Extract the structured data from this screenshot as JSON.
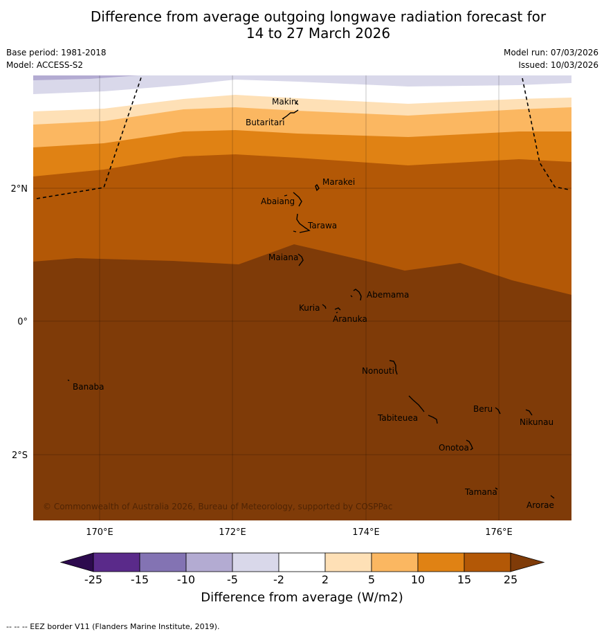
{
  "title_line1": "Difference from average outgoing longwave radiation forecast for",
  "title_line2": "14 to 27 March 2026",
  "meta_left": {
    "base_period": "Base period: 1981-2018",
    "model": "Model: ACCESS-S2"
  },
  "meta_right": {
    "model_run": "Model run: 07/03/2026",
    "issued": "Issued: 10/03/2026"
  },
  "axes": {
    "lon_labels": [
      "170°E",
      "172°E",
      "174°E",
      "176°E"
    ],
    "lat_labels": [
      "2°N",
      "0°",
      "2°S"
    ]
  },
  "islands": [
    "Makin",
    "Butaritari",
    "Marakei",
    "Abaiang",
    "Tarawa",
    "Maiana",
    "Abemama",
    "Kuria",
    "Aranuka",
    "Nonouti",
    "Banaba",
    "Beru",
    "Nikunau",
    "Tabiteuea",
    "Onotoa",
    "Tamana",
    "Arorae"
  ],
  "copyright": "© Commonwealth of Australia 2026, Bureau of Meteorology, supported by COSPPac",
  "colorbar": {
    "ticks": [
      "-25",
      "-15",
      "-10",
      "-5",
      "-2",
      "2",
      "5",
      "10",
      "15",
      "25"
    ],
    "colors": [
      "#2d0a4e",
      "#5a2a8a",
      "#8373b3",
      "#b3abd2",
      "#d9d8ea",
      "#ffffff",
      "#fee0b6",
      "#fbb761",
      "#e08214",
      "#b35806",
      "#7f3b08"
    ],
    "label": "Difference from average (W/m2)"
  },
  "footer": "--  --  -- EEZ border V11 (Flanders Marine Institute, 2019)."
}
